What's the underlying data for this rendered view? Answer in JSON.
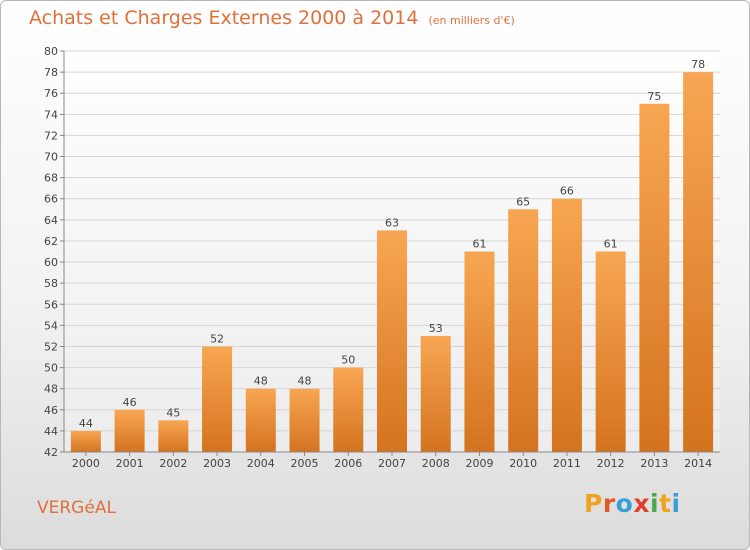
{
  "header": {
    "title": "Achats et Charges Externes 2000 à 2014",
    "unit": "(en milliers d'€)"
  },
  "footer": {
    "place": "VERGéAL",
    "logo_letters": [
      "P",
      "r",
      "o",
      "x",
      "i",
      "t",
      "i"
    ],
    "logo_colors": [
      "#f0a31e",
      "#e05a28",
      "#3aa0d8",
      "#e0402f",
      "#4aa84a",
      "#f0a31e",
      "#3aa0d8"
    ]
  },
  "colors": {
    "bar_light": "#f8a653",
    "bar_dark": "#d4731f",
    "title": "#e0703a"
  },
  "chart_data": {
    "type": "bar",
    "title": "Achats et Charges Externes 2000 à 2014",
    "categories": [
      "2000",
      "2001",
      "2002",
      "2003",
      "2004",
      "2005",
      "2006",
      "2007",
      "2008",
      "2009",
      "2010",
      "2011",
      "2012",
      "2013",
      "2014"
    ],
    "values": [
      44,
      46,
      45,
      52,
      48,
      48,
      50,
      63,
      53,
      61,
      65,
      66,
      61,
      75,
      78
    ],
    "ylim": [
      42,
      80
    ],
    "yticks": [
      "42",
      "44",
      "46",
      "48",
      "50",
      "52",
      "54",
      "56",
      "58",
      "60",
      "62",
      "64",
      "66",
      "68",
      "70",
      "72",
      "74",
      "76",
      "78",
      "80"
    ],
    "grid": true
  }
}
